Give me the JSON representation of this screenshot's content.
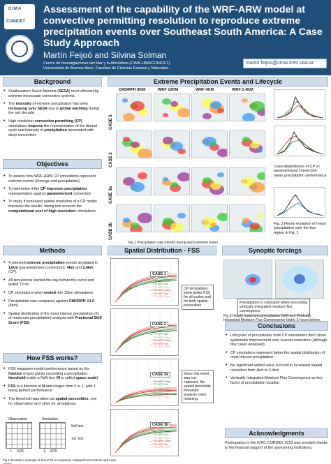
{
  "header": {
    "logo_text": "CIMA",
    "logo_sub": "CONICET",
    "title": "Assessment of the capability of the WRF-ARW model at convective permitting resolution to reproduce extreme precipitation events over Southeast South America: A Case Study Approach",
    "authors": "Martín Feijoó and Silvina Solman",
    "affiliation_1": "Centro de Investigaciones del Mar y la Atmósfera (CIMA-UBA/CONICET)",
    "affiliation_2": "Universidad de Buenos Aires, Facultad de Ciencias Exactas y Naturales.",
    "email": "martin.feijoo@cima.fcen.uba.ar"
  },
  "background": {
    "heading": "Background",
    "items": [
      {
        "pre": "Southeastern South America (",
        "bold": "SESA",
        "post": ") most affected by extreme mesoscale convective systems."
      },
      {
        "pre": "The ",
        "bold": "intensity",
        "mid": " of extreme precipitation has been ",
        "bold2": "increasing over SESA",
        "post": " due to ",
        "bold3": "global warming",
        "post2": " during the last decade."
      },
      {
        "pre": "High resolution ",
        "bold": "convective permitting (CP)",
        "mid": " simulations ",
        "bold2": "improve",
        "post": " the representation of the diurnal cycle and intensity of ",
        "bold3": "precipitation",
        "post2": " associated with deep convection."
      }
    ]
  },
  "objectives": {
    "heading": "Objectives",
    "items": [
      {
        "pre": "To assess how WRF-ARW CP simulations represent extreme events (forcings and precipitation)"
      },
      {
        "pre": "To determine if the ",
        "bold": "CP improves precipitation",
        "post": " representation against ",
        "bold2": "parameterized",
        "post2": " convection"
      },
      {
        "pre": "To study if increased spatial resolution of a CP model improves the results, taking into account the ",
        "bold": "computational cost of high resolution",
        "post": " simulations."
      }
    ]
  },
  "methods": {
    "heading": "Methods",
    "items": [
      {
        "pre": "4 selected ",
        "bold": "extreme precipitation",
        "post": " events simulated in ",
        "bold2": "12km",
        "post2": " (parameterized convection), ",
        "bold3": "4km",
        "post3": " and ",
        "bold4": "2.4km",
        "post4": " (CP)."
      },
      {
        "pre": "All simulations started the day before the event and lasted 72 hs."
      },
      {
        "pre": "CP simulations were ",
        "bold": "nested",
        "post": " into 12km simulations"
      },
      {
        "pre": "Precipitation was compared against ",
        "bold": "CMORPH V1.0",
        "post": " (8km)"
      },
      {
        "pre": "Spatial distribution of the most intense precipitation (% of maximum precipitation) analysis with ",
        "bold": "Fractional Skill Score (FSS)",
        "post": ""
      }
    ]
  },
  "fss_works": {
    "heading": "How FSS works?",
    "items": [
      {
        "pre": "FSS measures model performance based on the ",
        "bold": "fraction",
        "post": " of grid points exceeding a precipitation ",
        "bold2": "threshold",
        "post2": " inside a NxN box (",
        "bold3": "N",
        "post3": " is called ",
        "bold4": "space scale",
        "post4": ")"
      },
      {
        "pre": "",
        "bold": "FSS",
        "post": " is a function of ",
        "bold2": "N",
        "post2": " and ranges from 0 to 1, with 1 being perfect performance"
      },
      {
        "pre": "The threshold was taken as ",
        "bold": "spatial percentiles",
        "post": ", one for observation and other for simulations."
      }
    ],
    "observation_label": "Observation",
    "simulation_label": "Simulation",
    "box5_label": "5x5 box",
    "box1_label": "1x1 box",
    "obs_values": [
      "1,",
      "6/25"
    ],
    "sim_values": [
      "1,",
      "6/25"
    ],
    "caption": "Fig 1 Illustrative example of how FSS is computed. Adapted from Roberts and Lean (2007)"
  },
  "events": {
    "heading": "Extreme Precipitation Events and Lifecycle",
    "columns": [
      "CMORPH 8KM",
      "WRF 12KM",
      "WRF 4KM",
      "WRF 2.4KM"
    ],
    "rows": [
      "CASE 1",
      "CASE 2",
      "CASE 3a",
      "CASE 3b"
    ],
    "caption": "Fig 1 Precipitation rate (mm/h) during each extreme event.",
    "side_text": "Case-dependence of CP vs parameterized convection mean precipitation performance",
    "fig2_caption": "Fig. 2 Hourly evolution of mean precipitation over the box region in Fig. 1"
  },
  "fss": {
    "heading": "Spatial Distribution - FSS",
    "cases": [
      "CASE 1",
      "CASE 2",
      "CASE 3a",
      "CASE 3b"
    ],
    "legend": [
      "P75 WRF 2.4km",
      "P75 WRF 4km",
      "P75 WRF 12km",
      "P90 WRF 2.4km",
      "P90 WRF 4km",
      "P90 WRF 12km"
    ],
    "callout_1": "CP simulations show better FSS for all scales and for both spatial percentiles",
    "callout_2": "Since this event was not captured, the spatial percentile threshold analysis loses meaning."
  },
  "synoptic": {
    "heading": "Synoptic forcings",
    "callout": "Precipitation is colocated where preceding vertically integrated moisture flux convergence",
    "caption": "Fig 3 Hourly maximum precipitation (left) and Vertically Integrated Moisture Flux Convergence (right) 3 hours before."
  },
  "conclusions": {
    "heading": "Conclusions",
    "items": [
      "Lifecycles of precipitation from CP simulations don't show systematic improvement over coarser resolution (although few cases analysed)",
      "CP simulations represent better the spatial distribution of most intense precipitation.",
      "No significant added value is found in increased spatial resolution from 4km to 2.4km",
      "Vertically Integrated Moisture Flux Convergence as key factor of precipitation location"
    ]
  },
  "acknowledgments": {
    "heading": "Acknowledgments",
    "text": "Participation in the ICRC-CORDEX 2019 was possible thanks to the financial support of the sponsoring institutions."
  },
  "colors": {
    "header_bg": "#1f4e79",
    "section_bg": "#cfdceb",
    "section_border": "#9fb4cc"
  }
}
